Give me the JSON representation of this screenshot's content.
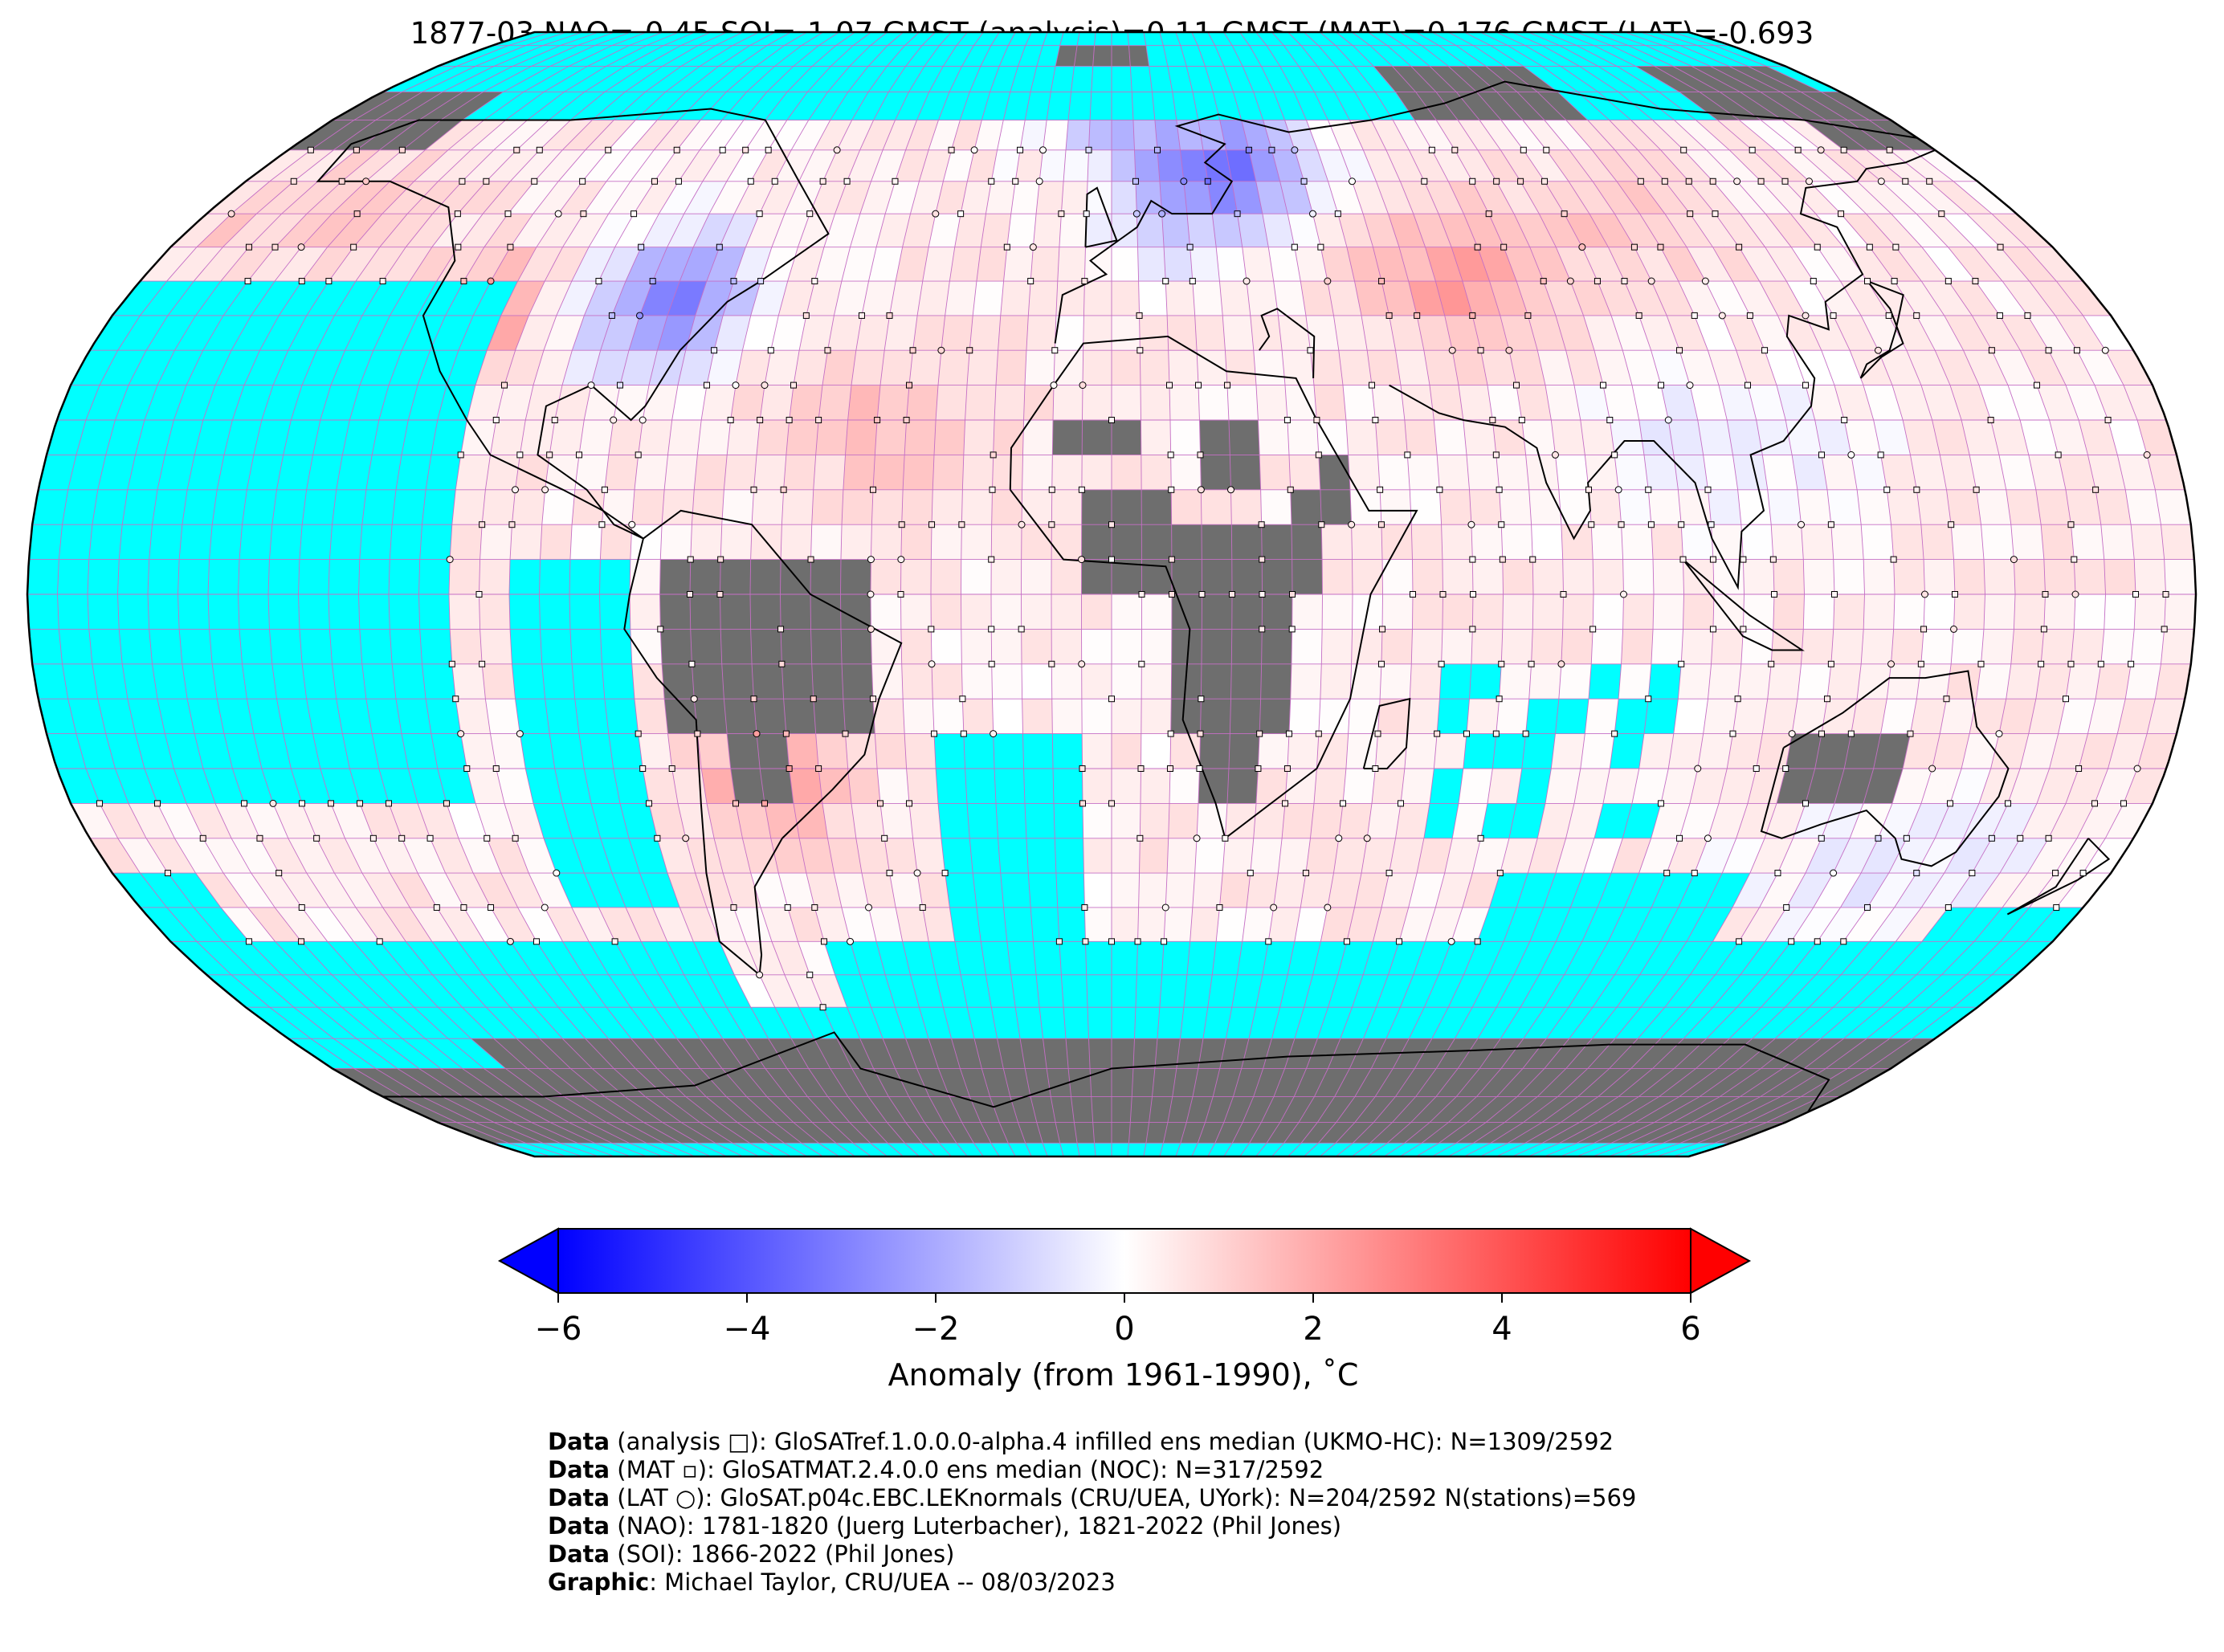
{
  "title": "1877-03 NAO=-0.45 SOI=-1.07 GMST (analysis)=0.11 GMST (MAT)=0.176 GMST (LAT)=-0.693",
  "map": {
    "projection": "Robinson",
    "missing_ocean_color": "#00ffff",
    "missing_land_color": "#6e6e6e",
    "gridline_color": "#c56fc5",
    "coastline_color": "#000000",
    "marker_legend": {
      "analysis": "square",
      "MAT": "small square",
      "LAT": "circle"
    }
  },
  "colorbar": {
    "cmap": "bwr",
    "vmin": -6,
    "vmax": 6,
    "extend": "both",
    "ticks": [
      "−6",
      "−4",
      "−2",
      "0",
      "2",
      "4",
      "6"
    ],
    "label": "Anomaly (from 1961-1990), ˚C",
    "colors": {
      "min": "#0000ff",
      "mid": "#ffffff",
      "max": "#ff0000"
    }
  },
  "credits": [
    {
      "bold": "Data",
      "text": " (analysis □): GloSATref.1.0.0.0-alpha.4 infilled ens median (UKMO-HC): N=1309/2592"
    },
    {
      "bold": "Data",
      "text": " (MAT ▫): GloSATMAT.2.4.0.0 ens median (NOC): N=317/2592"
    },
    {
      "bold": "Data",
      "text": " (LAT ○): GloSAT.p04c.EBC.LEKnormals (CRU/UEA, UYork): N=204/2592 N(stations)=569"
    },
    {
      "bold": "Data",
      "text": " (NAO): 1781-1820 (Juerg Luterbacher), 1821-2022 (Phil Jones)"
    },
    {
      "bold": "Data",
      "text": " (SOI): 1866-2022 (Phil Jones)"
    },
    {
      "bold": "Graphic",
      "text": ": Michael Taylor, CRU/UEA -- 08/03/2023"
    }
  ]
}
